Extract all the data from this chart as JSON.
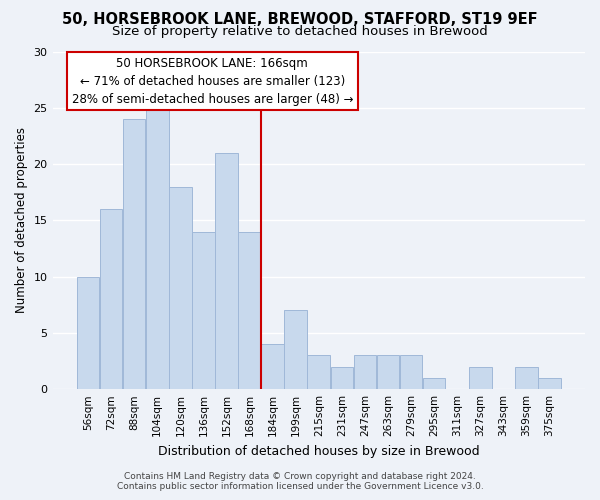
{
  "title": "50, HORSEBROOK LANE, BREWOOD, STAFFORD, ST19 9EF",
  "subtitle": "Size of property relative to detached houses in Brewood",
  "xlabel": "Distribution of detached houses by size in Brewood",
  "ylabel": "Number of detached properties",
  "bar_labels": [
    "56sqm",
    "72sqm",
    "88sqm",
    "104sqm",
    "120sqm",
    "136sqm",
    "152sqm",
    "168sqm",
    "184sqm",
    "199sqm",
    "215sqm",
    "231sqm",
    "247sqm",
    "263sqm",
    "279sqm",
    "295sqm",
    "311sqm",
    "327sqm",
    "343sqm",
    "359sqm",
    "375sqm"
  ],
  "bar_values": [
    10,
    16,
    24,
    25,
    18,
    14,
    21,
    14,
    4,
    7,
    3,
    2,
    3,
    3,
    3,
    1,
    0,
    2,
    0,
    2,
    1
  ],
  "bar_color": "#c8d9ed",
  "bar_edge_color": "#a0b8d8",
  "highlight_index": 7,
  "highlight_line_color": "#cc0000",
  "annotation_line1": "50 HORSEBROOK LANE: 166sqm",
  "annotation_line2": "← 71% of detached houses are smaller (123)",
  "annotation_line3": "28% of semi-detached houses are larger (48) →",
  "annotation_box_edge_color": "#cc0000",
  "ylim": [
    0,
    30
  ],
  "yticks": [
    0,
    5,
    10,
    15,
    20,
    25,
    30
  ],
  "footer_line1": "Contains HM Land Registry data © Crown copyright and database right 2024.",
  "footer_line2": "Contains public sector information licensed under the Government Licence v3.0.",
  "bg_color": "#eef2f8",
  "grid_color": "#ffffff",
  "title_fontsize": 10.5,
  "subtitle_fontsize": 9.5,
  "bar_width": 0.98
}
